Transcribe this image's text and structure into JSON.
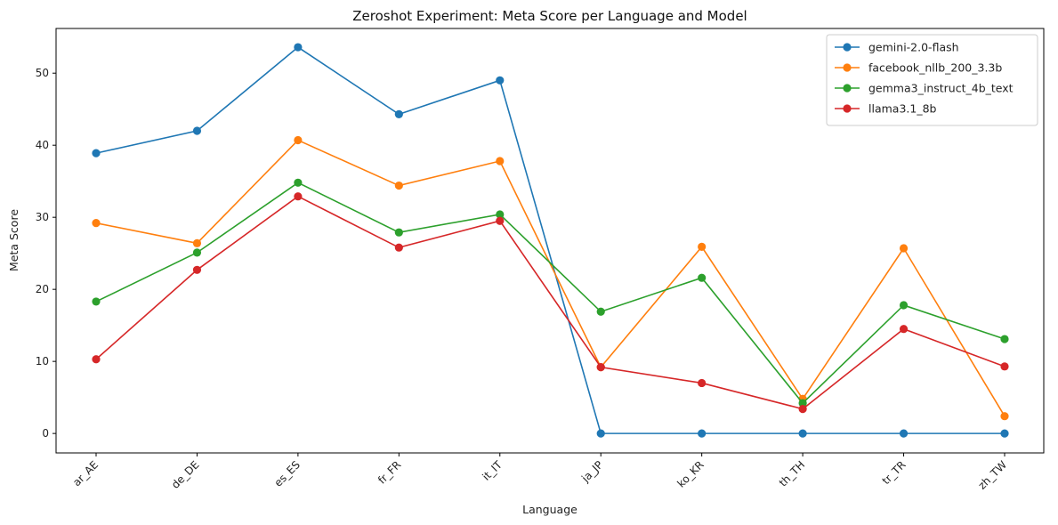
{
  "chart_data": {
    "type": "line",
    "title": "Zeroshot Experiment: Meta Score per Language and Model",
    "xlabel": "Language",
    "ylabel": "Meta Score",
    "categories": [
      "ar_AE",
      "de_DE",
      "es_ES",
      "fr_FR",
      "it_IT",
      "ja_JP",
      "ko_KR",
      "th_TH",
      "tr_TR",
      "zh_TW"
    ],
    "ylim": [
      -2.7,
      56.2
    ],
    "yticks": [
      0,
      10,
      20,
      30,
      40,
      50
    ],
    "grid": false,
    "legend_position": "top-right",
    "series": [
      {
        "name": "gemini-2.0-flash",
        "color": "#1f77b4",
        "values": [
          38.9,
          42.0,
          53.6,
          44.3,
          49.0,
          0.0,
          0.0,
          0.0,
          0.0,
          0.0
        ]
      },
      {
        "name": "facebook_nllb_200_3.3b",
        "color": "#ff7f0e",
        "values": [
          29.2,
          26.4,
          40.7,
          34.4,
          37.8,
          9.2,
          25.9,
          4.8,
          25.7,
          2.4
        ]
      },
      {
        "name": "gemma3_instruct_4b_text",
        "color": "#2ca02c",
        "values": [
          18.3,
          25.1,
          34.8,
          27.9,
          30.4,
          16.9,
          21.6,
          4.2,
          17.8,
          13.1
        ]
      },
      {
        "name": "llama3.1_8b",
        "color": "#d62728",
        "values": [
          10.3,
          22.7,
          32.9,
          25.8,
          29.5,
          9.2,
          7.0,
          3.4,
          14.5,
          9.3
        ]
      }
    ]
  }
}
